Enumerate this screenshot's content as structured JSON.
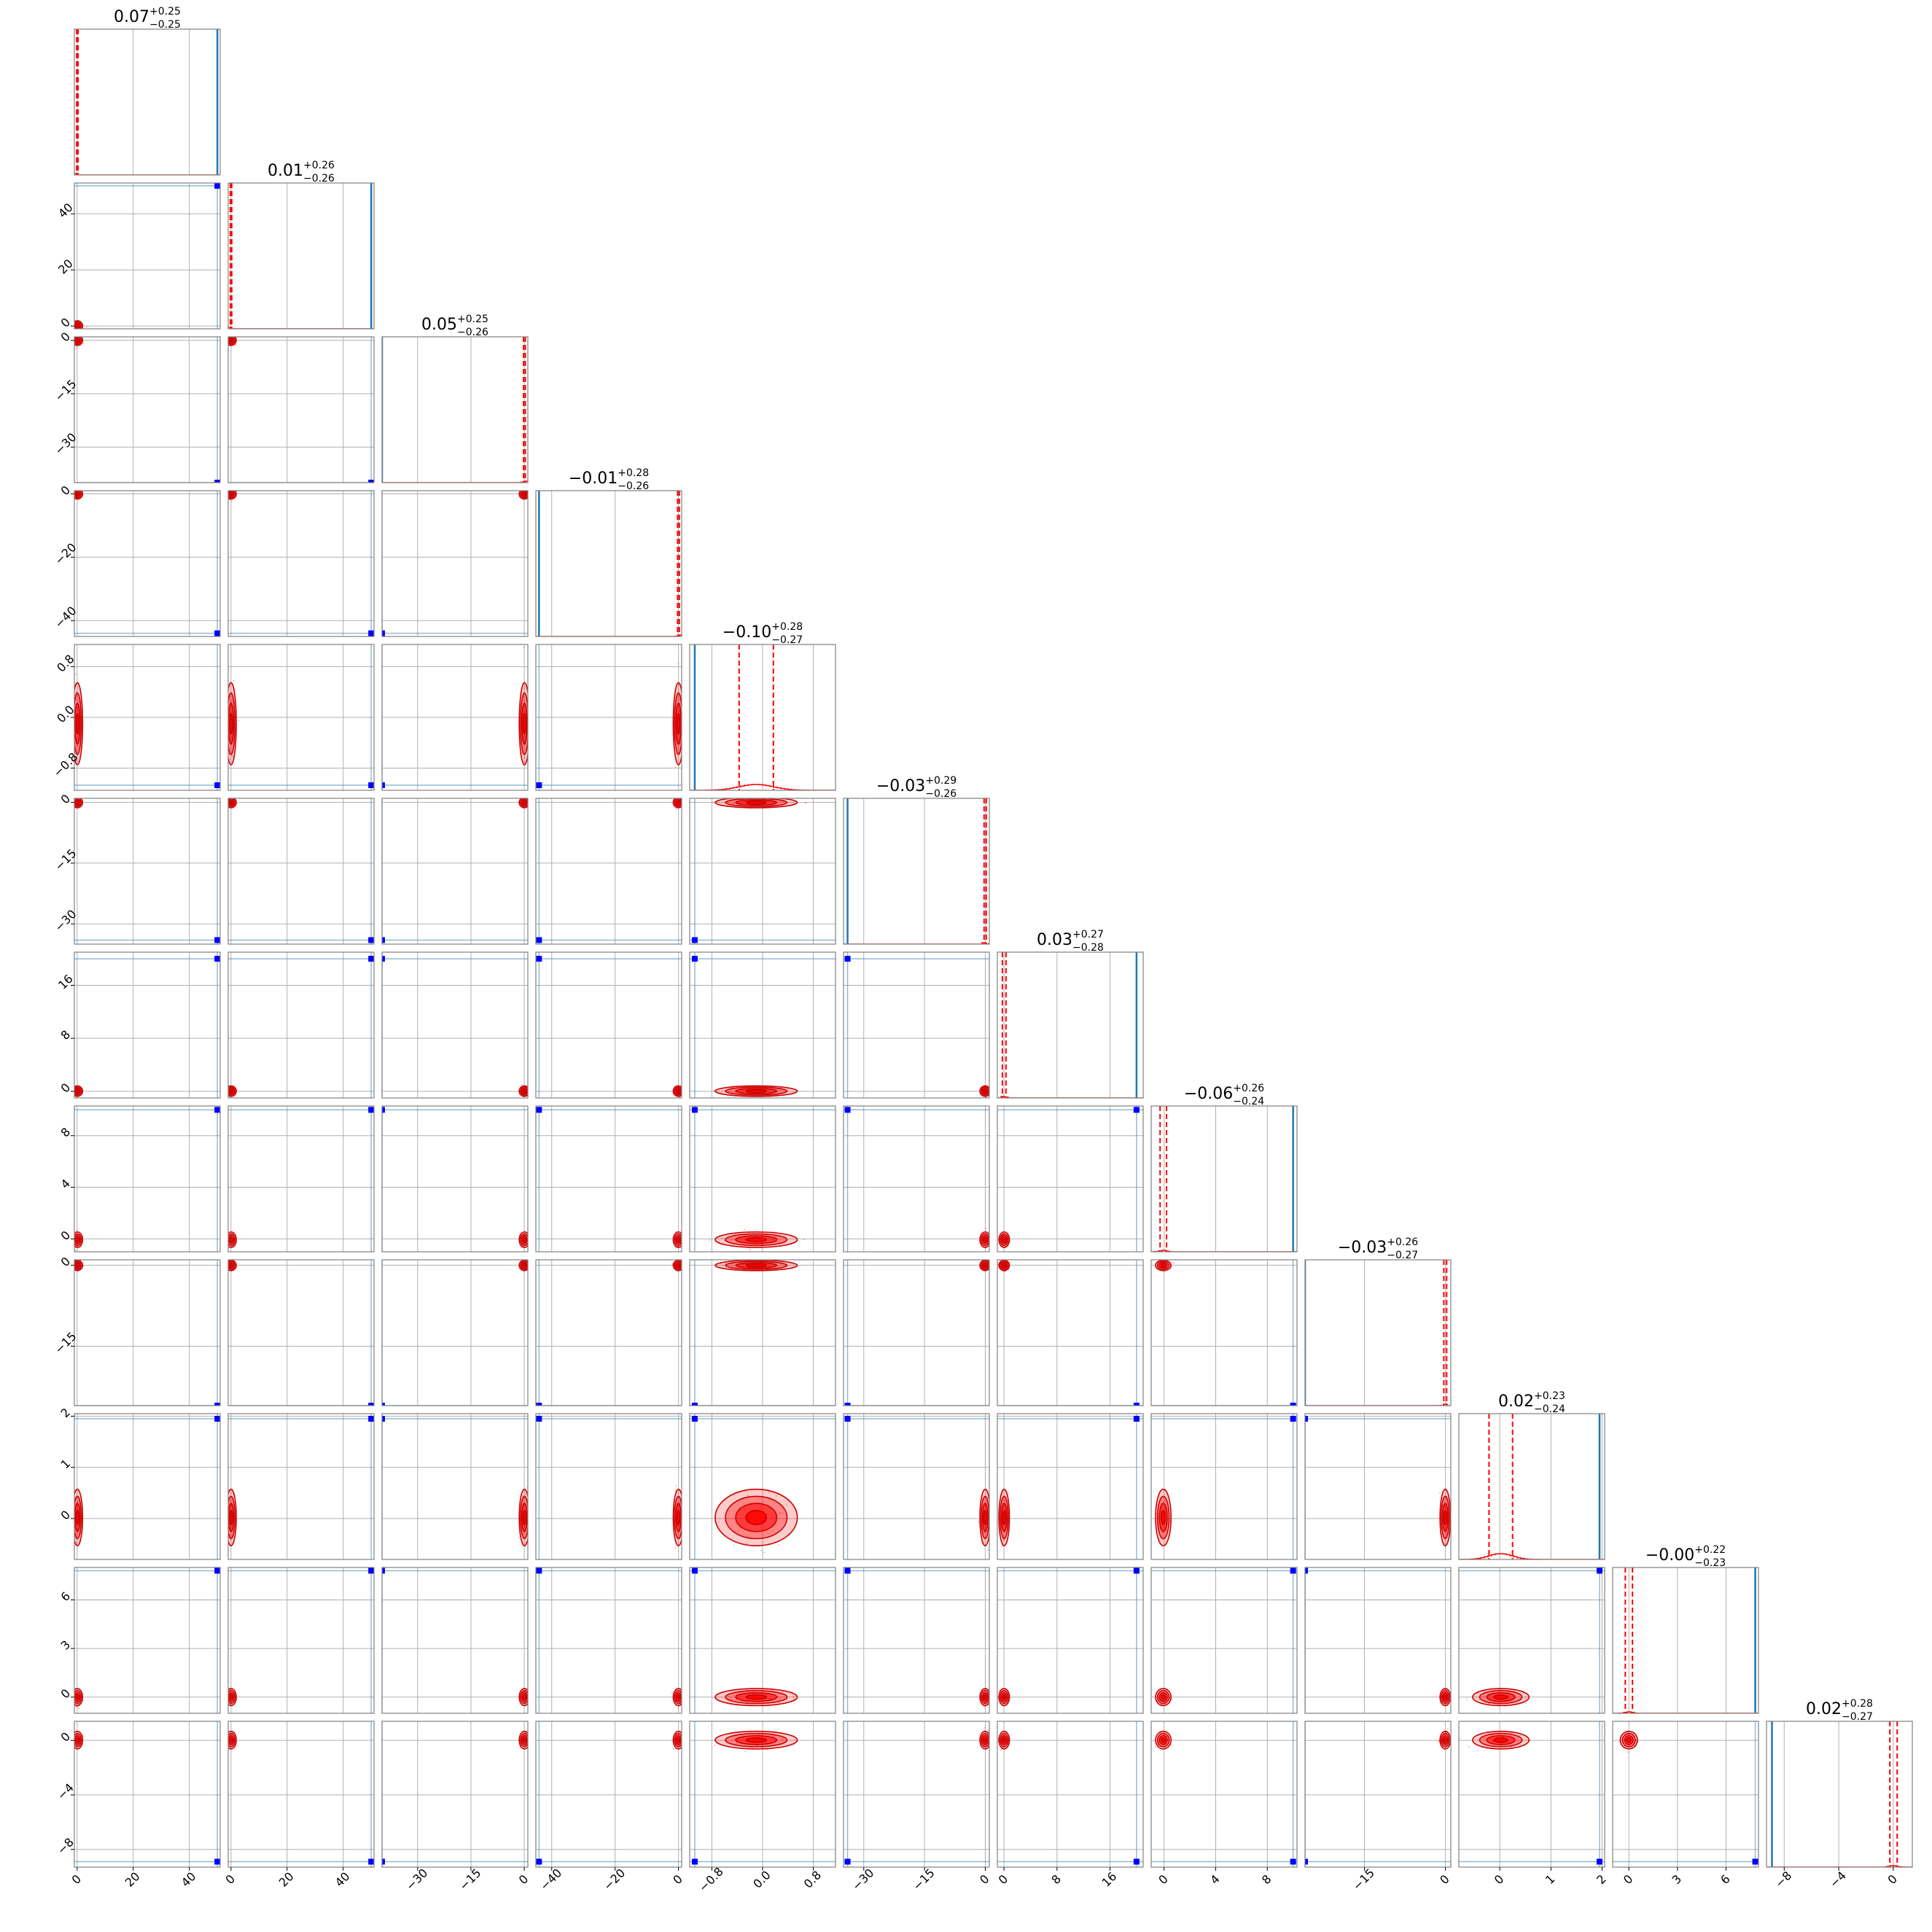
{
  "chart_data": {
    "type": "corner",
    "n_params": 12,
    "grid": true,
    "colors": {
      "samples": "#ff0000",
      "truth": "#1f77b4",
      "marker": "#0000ff",
      "frame": "#808080",
      "gridline": "#b0b0b0"
    },
    "titles": [
      {
        "median": "0.07",
        "plus": "+0.25",
        "minus": "−0.25"
      },
      {
        "median": "0.01",
        "plus": "+0.26",
        "minus": "−0.26"
      },
      {
        "median": "0.05",
        "plus": "+0.25",
        "minus": "−0.26"
      },
      {
        "median": "−0.01",
        "plus": "+0.28",
        "minus": "−0.26"
      },
      {
        "median": "−0.10",
        "plus": "+0.28",
        "minus": "−0.27"
      },
      {
        "median": "−0.03",
        "plus": "+0.29",
        "minus": "−0.26"
      },
      {
        "median": "0.03",
        "plus": "+0.27",
        "minus": "−0.28"
      },
      {
        "median": "−0.06",
        "plus": "+0.26",
        "minus": "−0.24"
      },
      {
        "median": "−0.03",
        "plus": "+0.26",
        "minus": "−0.27"
      },
      {
        "median": "0.02",
        "plus": "+0.23",
        "minus": "−0.24"
      },
      {
        "median": "−0.00",
        "plus": "+0.22",
        "minus": "−0.23"
      },
      {
        "median": "0.02",
        "plus": "+0.28",
        "minus": "−0.27"
      }
    ],
    "ranges": [
      [
        -1,
        51
      ],
      [
        -1,
        51
      ],
      [
        -40,
        1
      ],
      [
        -45,
        1
      ],
      [
        -1.15,
        1.15
      ],
      [
        -35,
        1
      ],
      [
        -1,
        21
      ],
      [
        -1,
        10.3
      ],
      [
        -26,
        1
      ],
      [
        -0.8,
        2.05
      ],
      [
        -1,
        8
      ],
      [
        -9.3,
        1.4
      ]
    ],
    "ticks": [
      [
        "0",
        "20",
        "40"
      ],
      [
        "0",
        "20",
        "40"
      ],
      [
        "−30",
        "−15",
        "0"
      ],
      [
        "−40",
        "−20",
        "0"
      ],
      [
        "−0.8",
        "0.0",
        "0.8"
      ],
      [
        "−30",
        "−15",
        "0"
      ],
      [
        "0",
        "8",
        "16"
      ],
      [
        "0",
        "4",
        "8"
      ],
      [
        "−15",
        "0"
      ],
      [
        "0",
        "1",
        "2"
      ],
      [
        "0",
        "3",
        "6"
      ],
      [
        "−8",
        "−4",
        "0"
      ]
    ],
    "truths": [
      50,
      50,
      -40,
      -44,
      -1.07,
      -34,
      20,
      10,
      -26,
      1.95,
      7.8,
      -8.9
    ],
    "posterior_median": [
      0.07,
      0.01,
      0.05,
      -0.01,
      -0.1,
      -0.03,
      0.03,
      -0.06,
      -0.03,
      0.02,
      -0.0,
      0.02
    ],
    "posterior_sigma": [
      0.25,
      0.26,
      0.25,
      0.27,
      0.27,
      0.27,
      0.27,
      0.25,
      0.26,
      0.23,
      0.22,
      0.27
    ],
    "quantiles": [
      0.16,
      0.84
    ]
  }
}
